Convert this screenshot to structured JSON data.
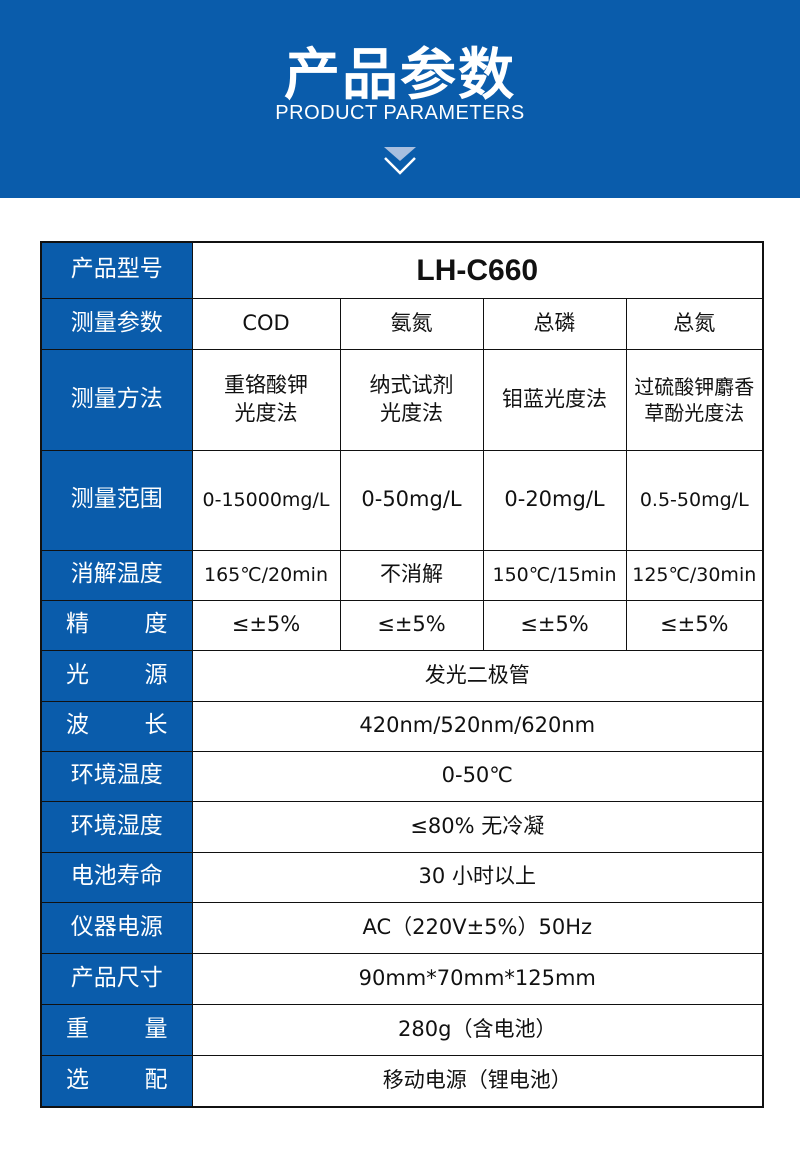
{
  "header": {
    "title": "产品参数",
    "subtitle": "PRODUCT PARAMETERS",
    "icon": "chevron-down-icon",
    "color": "#0a5cab"
  },
  "table": {
    "model": {
      "label": "产品型号",
      "value": "LH-C660"
    },
    "parameters": {
      "label": "测量参数",
      "values": [
        "COD",
        "氨氮",
        "总磷",
        "总氮"
      ]
    },
    "method": {
      "label": "测量方法",
      "values": [
        "重铬酸钾\n光度法",
        "纳式试剂\n光度法",
        "钼蓝光度法",
        "过硫酸钾麝香\n草酚光度法"
      ]
    },
    "range": {
      "label": "测量范围",
      "values": [
        "0-15000mg/L",
        "0-50mg/L",
        "0-20mg/L",
        "0.5-50mg/L"
      ]
    },
    "digestion": {
      "label": "消解温度",
      "values": [
        "165℃/20min",
        "不消解",
        "150℃/15min",
        "125℃/30min"
      ]
    },
    "accuracy": {
      "label": [
        "精",
        "度"
      ],
      "values": [
        "≤±5%",
        "≤±5%",
        "≤±5%",
        "≤±5%"
      ]
    },
    "light": {
      "label": [
        "光",
        "源"
      ],
      "value": "发光二极管"
    },
    "wavelength": {
      "label": [
        "波",
        "长"
      ],
      "value": "420nm/520nm/620nm"
    },
    "env_temp": {
      "label": "环境温度",
      "value": "0-50℃"
    },
    "env_humidity": {
      "label": "环境湿度",
      "value": "≤80% 无冷凝"
    },
    "battery": {
      "label": "电池寿命",
      "value": "30 小时以上"
    },
    "power": {
      "label": "仪器电源",
      "value": "AC（220V±5%）50Hz"
    },
    "size": {
      "label": "产品尺寸",
      "value": "90mm*70mm*125mm"
    },
    "weight": {
      "label": [
        "重",
        "量"
      ],
      "value": "280g（含电池）"
    },
    "option": {
      "label": [
        "选",
        "配"
      ],
      "value": "移动电源（锂电池）"
    }
  }
}
